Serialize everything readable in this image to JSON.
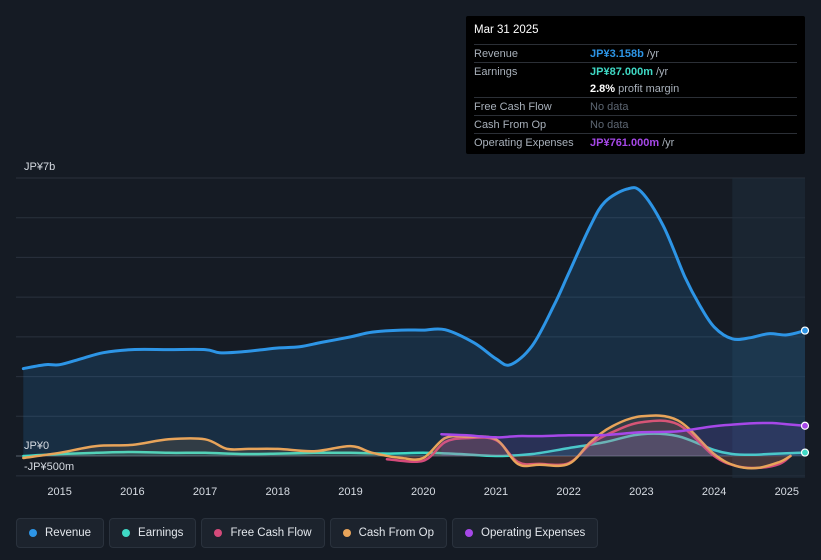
{
  "tooltip": {
    "date": "Mar 31 2025",
    "rows": {
      "revenue": {
        "label": "Revenue",
        "value": "JP¥3.158b",
        "unit": "/yr"
      },
      "earnings": {
        "label": "Earnings",
        "value": "JP¥87.000m",
        "unit": "/yr"
      },
      "margin": {
        "value": "2.8%",
        "unit": "profit margin"
      },
      "fcf": {
        "label": "Free Cash Flow",
        "value": "No data"
      },
      "cfo": {
        "label": "Cash From Op",
        "value": "No data"
      },
      "opex": {
        "label": "Operating Expenses",
        "value": "JP¥761.000m",
        "unit": "/yr"
      }
    }
  },
  "legend": {
    "revenue": "Revenue",
    "earnings": "Earnings",
    "fcf": "Free Cash Flow",
    "cfo": "Cash From Op",
    "opex": "Operating Expenses"
  },
  "colors": {
    "revenue": "#2d95e6",
    "earnings": "#3fd9c5",
    "fcf": "#d44a7a",
    "cfo": "#e8a45a",
    "opex": "#a648e8",
    "background": "#151b24"
  },
  "chart_data": {
    "type": "line",
    "title": "",
    "y_unit": "JP¥ billions",
    "ylim": [
      -0.5,
      7
    ],
    "y_tick_labels": [
      {
        "value": 7,
        "label": "JP¥7b"
      },
      {
        "value": 0,
        "label": "JP¥0"
      },
      {
        "value": -0.5,
        "label": "-JP¥500m"
      }
    ],
    "x_tick_labels": [
      "2015",
      "2016",
      "2017",
      "2018",
      "2019",
      "2020",
      "2021",
      "2022",
      "2023",
      "2024",
      "2025"
    ],
    "x_ticks": [
      2015,
      2016,
      2017,
      2018,
      2019,
      2020,
      2021,
      2022,
      2023,
      2024,
      2025
    ],
    "xlim": [
      2014.4,
      2025.25
    ],
    "highlight_start": 2024.25,
    "series": [
      {
        "name": "Revenue",
        "key": "revenue",
        "fill": true,
        "x": [
          2014.5,
          2014.8,
          2015.0,
          2015.3,
          2015.6,
          2016.0,
          2016.5,
          2017.0,
          2017.2,
          2017.5,
          2017.8,
          2018.0,
          2018.3,
          2018.6,
          2019.0,
          2019.3,
          2019.7,
          2020.0,
          2020.3,
          2020.7,
          2021.0,
          2021.2,
          2021.5,
          2021.8,
          2022.0,
          2022.3,
          2022.5,
          2022.8,
          2023.0,
          2023.3,
          2023.6,
          2023.8,
          2024.0,
          2024.25,
          2024.5,
          2024.75,
          2025.0,
          2025.25
        ],
        "values": [
          2.2,
          2.3,
          2.3,
          2.45,
          2.6,
          2.68,
          2.68,
          2.68,
          2.6,
          2.62,
          2.68,
          2.72,
          2.75,
          2.86,
          3.0,
          3.12,
          3.17,
          3.17,
          3.18,
          2.85,
          2.45,
          2.3,
          2.78,
          3.8,
          4.6,
          5.8,
          6.4,
          6.72,
          6.65,
          5.8,
          4.5,
          3.8,
          3.25,
          2.95,
          2.98,
          3.08,
          3.05,
          3.158
        ]
      },
      {
        "name": "Earnings",
        "key": "earnings",
        "fill": false,
        "x": [
          2014.5,
          2015.0,
          2015.5,
          2016.0,
          2016.5,
          2017.0,
          2017.5,
          2018.0,
          2018.5,
          2019.0,
          2019.5,
          2020.0,
          2020.5,
          2021.0,
          2021.5,
          2022.0,
          2022.5,
          2023.0,
          2023.5,
          2024.0,
          2024.25,
          2024.5,
          2024.75,
          2025.0,
          2025.25
        ],
        "values": [
          0.0,
          0.05,
          0.08,
          0.1,
          0.08,
          0.08,
          0.05,
          0.06,
          0.08,
          0.08,
          0.06,
          0.08,
          0.05,
          0.0,
          0.05,
          0.2,
          0.35,
          0.55,
          0.5,
          0.15,
          0.05,
          0.03,
          0.05,
          0.07,
          0.087
        ]
      },
      {
        "name": "Free Cash Flow",
        "key": "fcf",
        "fill": false,
        "x": [
          2019.5,
          2020.0,
          2020.3,
          2020.6,
          2021.0,
          2021.3,
          2021.6,
          2022.0,
          2022.3,
          2022.6,
          2023.0,
          2023.5,
          2024.0,
          2024.3,
          2024.6,
          2024.9,
          2025.05
        ],
        "values": [
          -0.08,
          -0.12,
          0.35,
          0.45,
          0.4,
          -0.15,
          -0.2,
          -0.18,
          0.3,
          0.6,
          0.85,
          0.8,
          0.0,
          -0.25,
          -0.3,
          -0.2,
          0.0
        ]
      },
      {
        "name": "Cash From Op",
        "key": "cfo",
        "fill": false,
        "x": [
          2014.5,
          2015.0,
          2015.5,
          2016.0,
          2016.5,
          2017.0,
          2017.3,
          2017.6,
          2018.0,
          2018.5,
          2019.0,
          2019.3,
          2019.7,
          2020.0,
          2020.3,
          2020.6,
          2021.0,
          2021.3,
          2021.6,
          2022.0,
          2022.3,
          2022.6,
          2023.0,
          2023.5,
          2024.0,
          2024.3,
          2024.6,
          2024.9,
          2025.05
        ],
        "values": [
          -0.05,
          0.08,
          0.25,
          0.28,
          0.42,
          0.42,
          0.18,
          0.18,
          0.18,
          0.12,
          0.25,
          0.08,
          -0.05,
          -0.05,
          0.45,
          0.48,
          0.42,
          -0.2,
          -0.22,
          -0.2,
          0.35,
          0.75,
          1.0,
          0.9,
          0.05,
          -0.25,
          -0.3,
          -0.15,
          0.0
        ]
      },
      {
        "name": "Operating Expenses",
        "key": "opex",
        "fill": false,
        "x": [
          2020.25,
          2020.6,
          2021.0,
          2021.3,
          2021.6,
          2022.0,
          2022.5,
          2023.0,
          2023.5,
          2024.0,
          2024.5,
          2024.8,
          2025.0,
          2025.25
        ],
        "values": [
          0.55,
          0.52,
          0.47,
          0.5,
          0.5,
          0.52,
          0.53,
          0.6,
          0.62,
          0.75,
          0.82,
          0.83,
          0.8,
          0.761
        ]
      }
    ]
  }
}
